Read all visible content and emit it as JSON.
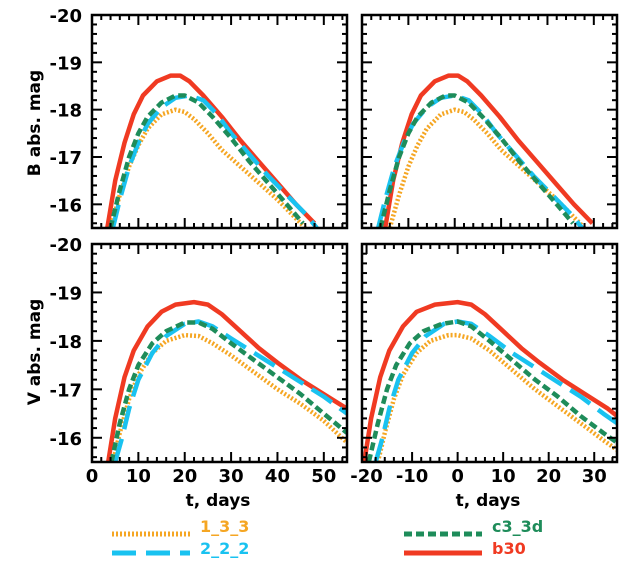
{
  "colors": {
    "model_1_3_3": "#F5A623",
    "model_2_2_2": "#19C2F0",
    "model_c3_3d": "#1E8C5A",
    "model_b30": "#F03A22",
    "axes": "#000000"
  },
  "legend": {
    "entries": [
      {
        "label": "1_3_3",
        "color": "#F5A623",
        "dash": "dotted"
      },
      {
        "label": "2_2_2",
        "color": "#19C2F0",
        "dash": "long-dash"
      },
      {
        "label": "c3_3d",
        "color": "#1E8C5A",
        "dash": "short-dash"
      },
      {
        "label": "b30",
        "color": "#F03A22",
        "dash": "solid"
      }
    ]
  },
  "chart_data": [
    {
      "type": "line",
      "panel": "top-left",
      "xlabel": "",
      "ylabel": "B abs. mag",
      "xlim": [
        0,
        55
      ],
      "ylim": [
        -15.5,
        -20
      ],
      "y_ticks": [
        "-20",
        "-19",
        "-18",
        "-17",
        "-16"
      ],
      "x_ticks": [],
      "series": [
        {
          "name": "1_3_3",
          "x": [
            4,
            6,
            8,
            10,
            12,
            15,
            18,
            20,
            22,
            25,
            28,
            32,
            36,
            40,
            43,
            46
          ],
          "y": [
            -15.5,
            -16.2,
            -16.8,
            -17.25,
            -17.6,
            -17.9,
            -18.0,
            -17.95,
            -17.8,
            -17.5,
            -17.15,
            -16.8,
            -16.45,
            -16.1,
            -15.8,
            -15.5
          ]
        },
        {
          "name": "2_2_2",
          "x": [
            4.5,
            6,
            8,
            10,
            12,
            15,
            18,
            21,
            24,
            27,
            30,
            34,
            38,
            42,
            46,
            48.5
          ],
          "y": [
            -15.5,
            -16.1,
            -16.8,
            -17.3,
            -17.7,
            -18.05,
            -18.25,
            -18.3,
            -18.2,
            -17.9,
            -17.5,
            -17.05,
            -16.6,
            -16.2,
            -15.8,
            -15.5
          ]
        },
        {
          "name": "c3_3d",
          "x": [
            4,
            6,
            8,
            10,
            12,
            15,
            18,
            20,
            23,
            26,
            30,
            34,
            38,
            42,
            45.5
          ],
          "y": [
            -15.5,
            -16.3,
            -17.0,
            -17.5,
            -17.85,
            -18.15,
            -18.3,
            -18.3,
            -18.15,
            -17.85,
            -17.4,
            -16.9,
            -16.45,
            -16.0,
            -15.6
          ]
        },
        {
          "name": "b30",
          "x": [
            3.3,
            5,
            7,
            9,
            11,
            14,
            17,
            19,
            21,
            24,
            28,
            32,
            36,
            40,
            44,
            48
          ],
          "y": [
            -15.5,
            -16.5,
            -17.3,
            -17.9,
            -18.3,
            -18.6,
            -18.72,
            -18.72,
            -18.6,
            -18.3,
            -17.85,
            -17.35,
            -16.9,
            -16.45,
            -16.0,
            -15.6
          ]
        }
      ]
    },
    {
      "type": "line",
      "panel": "top-right",
      "xlabel": "",
      "ylabel": "",
      "xlim": [
        -20,
        35
      ],
      "ylim": [
        -15.5,
        -20
      ],
      "y_ticks": [],
      "x_ticks": [],
      "series": [
        {
          "name": "1_3_3",
          "x": [
            -14,
            -12,
            -10,
            -8,
            -6,
            -3,
            0,
            2,
            4,
            7,
            10,
            14,
            18,
            22,
            25,
            28
          ],
          "y": [
            -15.5,
            -16.2,
            -16.8,
            -17.25,
            -17.6,
            -17.9,
            -18.0,
            -17.95,
            -17.8,
            -17.5,
            -17.15,
            -16.8,
            -16.45,
            -16.1,
            -15.8,
            -15.5
          ]
        },
        {
          "name": "2_2_2",
          "x": [
            -16.5,
            -15,
            -13,
            -11,
            -9,
            -6,
            -3,
            0,
            3,
            6,
            9,
            13,
            17,
            21,
            25,
            27.5
          ],
          "y": [
            -15.5,
            -16.1,
            -16.8,
            -17.3,
            -17.7,
            -18.05,
            -18.25,
            -18.3,
            -18.2,
            -17.9,
            -17.5,
            -17.05,
            -16.6,
            -16.2,
            -15.8,
            -15.5
          ]
        },
        {
          "name": "c3_3d",
          "x": [
            -16,
            -14,
            -12,
            -10,
            -8,
            -5,
            -2,
            0,
            3,
            6,
            10,
            14,
            18,
            22,
            25.5
          ],
          "y": [
            -15.5,
            -16.3,
            -17.0,
            -17.5,
            -17.85,
            -18.15,
            -18.3,
            -18.3,
            -18.15,
            -17.85,
            -17.4,
            -16.9,
            -16.45,
            -16.0,
            -15.6
          ]
        },
        {
          "name": "b30",
          "x": [
            -15,
            -13.3,
            -11.3,
            -9.3,
            -7.3,
            -4.3,
            -1.3,
            0.7,
            2.7,
            5.7,
            9.7,
            13.7,
            17.7,
            21.7,
            25.7,
            29.7
          ],
          "y": [
            -15.5,
            -16.5,
            -17.3,
            -17.9,
            -18.3,
            -18.6,
            -18.72,
            -18.72,
            -18.6,
            -18.3,
            -17.85,
            -17.35,
            -16.9,
            -16.45,
            -16.0,
            -15.6
          ]
        }
      ]
    },
    {
      "type": "line",
      "panel": "bottom-left",
      "xlabel": "t, days",
      "ylabel": "V abs. mag",
      "xlim": [
        0,
        55
      ],
      "ylim": [
        -15.5,
        -20
      ],
      "y_ticks": [
        "-20",
        "-19",
        "-18",
        "-17",
        "-16"
      ],
      "x_ticks": [
        "0",
        "10",
        "20",
        "30",
        "40",
        "50"
      ],
      "series": [
        {
          "name": "1_3_3",
          "x": [
            4.5,
            6,
            8,
            10,
            13,
            16,
            20,
            23,
            26,
            30,
            35,
            40,
            45,
            50,
            55
          ],
          "y": [
            -15.5,
            -16.1,
            -16.8,
            -17.3,
            -17.75,
            -18.0,
            -18.12,
            -18.1,
            -17.95,
            -17.7,
            -17.35,
            -17.0,
            -16.7,
            -16.35,
            -15.9
          ]
        },
        {
          "name": "2_2_2",
          "x": [
            5,
            6.5,
            8,
            10,
            13,
            16,
            20,
            23,
            26,
            30,
            35,
            40,
            45,
            50,
            55
          ],
          "y": [
            -15.5,
            -16.0,
            -16.6,
            -17.2,
            -17.75,
            -18.1,
            -18.35,
            -18.4,
            -18.3,
            -18.05,
            -17.75,
            -17.45,
            -17.15,
            -16.85,
            -16.5
          ]
        },
        {
          "name": "c3_3d",
          "x": [
            4.2,
            6,
            8,
            10,
            13,
            16,
            20,
            23,
            26,
            30,
            35,
            40,
            45,
            50,
            55
          ],
          "y": [
            -15.5,
            -16.3,
            -17.0,
            -17.5,
            -17.95,
            -18.2,
            -18.38,
            -18.38,
            -18.25,
            -17.95,
            -17.6,
            -17.25,
            -16.9,
            -16.5,
            -16.1
          ]
        },
        {
          "name": "b30",
          "x": [
            3.5,
            5,
            7,
            9,
            12,
            15,
            18,
            22,
            25,
            28,
            32,
            36,
            40,
            45,
            50,
            55
          ],
          "y": [
            -15.5,
            -16.4,
            -17.25,
            -17.8,
            -18.3,
            -18.6,
            -18.75,
            -18.8,
            -18.75,
            -18.55,
            -18.2,
            -17.85,
            -17.55,
            -17.2,
            -16.9,
            -16.6
          ]
        }
      ]
    },
    {
      "type": "line",
      "panel": "bottom-right",
      "xlabel": "t, days",
      "ylabel": "",
      "xlim": [
        -21,
        35
      ],
      "ylim": [
        -15.5,
        -20
      ],
      "y_ticks": [],
      "x_ticks": [
        "-20",
        "-10",
        "0",
        "10",
        "20",
        "30"
      ],
      "series": [
        {
          "name": "1_3_3",
          "x": [
            -17.5,
            -16,
            -14,
            -12,
            -9,
            -6,
            -2,
            0,
            3,
            7,
            12,
            17,
            22,
            27,
            32,
            35
          ],
          "y": [
            -15.5,
            -16.1,
            -16.8,
            -17.3,
            -17.75,
            -18.0,
            -18.12,
            -18.12,
            -18.05,
            -17.8,
            -17.4,
            -17.0,
            -16.65,
            -16.3,
            -15.95,
            -15.75
          ]
        },
        {
          "name": "2_2_2",
          "x": [
            -18,
            -16.5,
            -15,
            -13,
            -10,
            -7,
            -3,
            0,
            3,
            7,
            12,
            17,
            22,
            27,
            32,
            35
          ],
          "y": [
            -15.5,
            -16.0,
            -16.6,
            -17.2,
            -17.75,
            -18.1,
            -18.35,
            -18.4,
            -18.35,
            -18.1,
            -17.75,
            -17.45,
            -17.15,
            -16.85,
            -16.5,
            -16.3
          ]
        },
        {
          "name": "c3_3d",
          "x": [
            -19.5,
            -17.5,
            -15.5,
            -13.5,
            -10.5,
            -7.5,
            -3.5,
            0,
            3,
            7,
            12,
            17,
            22,
            27,
            32,
            35
          ],
          "y": [
            -15.5,
            -16.3,
            -17.0,
            -17.5,
            -17.95,
            -18.2,
            -18.35,
            -18.4,
            -18.3,
            -18.0,
            -17.6,
            -17.2,
            -16.85,
            -16.45,
            -16.1,
            -15.9
          ]
        },
        {
          "name": "b30",
          "x": [
            -20.5,
            -19,
            -17,
            -15,
            -12,
            -9,
            -5,
            0,
            3,
            6,
            10,
            14,
            18,
            23,
            28,
            33,
            35
          ],
          "y": [
            -15.5,
            -16.4,
            -17.25,
            -17.8,
            -18.3,
            -18.6,
            -18.75,
            -18.8,
            -18.75,
            -18.55,
            -18.2,
            -17.85,
            -17.55,
            -17.2,
            -16.9,
            -16.6,
            -16.45
          ]
        }
      ]
    }
  ]
}
